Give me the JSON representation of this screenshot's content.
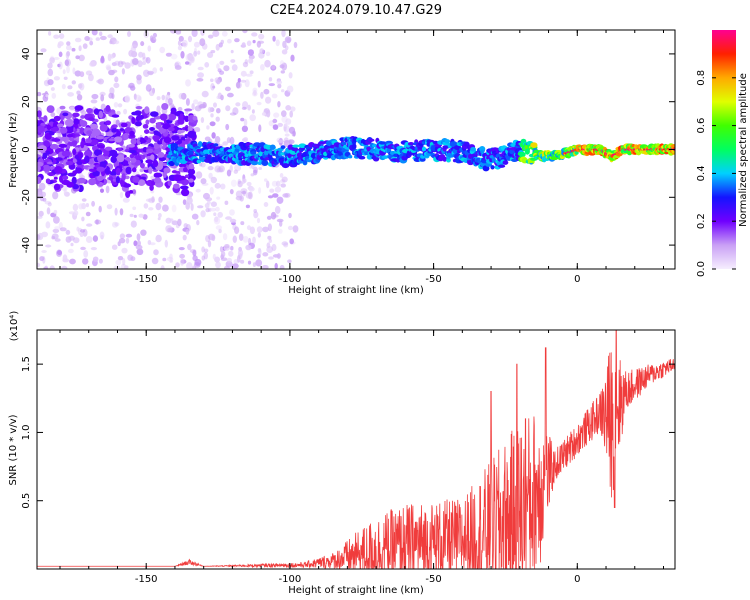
{
  "figure": {
    "title": "C2E4.2024.079.10.47.G29"
  },
  "chart_data": [
    {
      "type": "heatmap",
      "title": "C2E4.2024.079.10.47.G29",
      "xlabel": "Height of straight line (km)",
      "ylabel": "Frequency (Hz)",
      "xlim": [
        -188,
        34
      ],
      "ylim": [
        -50,
        50
      ],
      "x_ticks": [
        -150,
        -100,
        -50,
        0
      ],
      "y_ticks": [
        -40,
        -20,
        0,
        20,
        40
      ],
      "colorbar": {
        "label": "Normalized spectral amplitude",
        "range": [
          0,
          1
        ],
        "ticks": [
          "0.0",
          "0.2",
          "0.4",
          "0.6",
          "0.8"
        ],
        "colors": [
          "#f6eefe",
          "#c9a0f5",
          "#7000ff",
          "#1414ff",
          "#00d0ff",
          "#00ff60",
          "#40ff00",
          "#e0ff00",
          "#ffaa00",
          "#ff2000",
          "#ff0090"
        ]
      },
      "ridge": [
        {
          "x": -188,
          "y": 0
        },
        {
          "x": -170,
          "y": 1
        },
        {
          "x": -155,
          "y": 2
        },
        {
          "x": -142,
          "y": -2
        },
        {
          "x": -130,
          "y": -1
        },
        {
          "x": -110,
          "y": -2
        },
        {
          "x": -100,
          "y": -3
        },
        {
          "x": -90,
          "y": -1
        },
        {
          "x": -80,
          "y": 1
        },
        {
          "x": -70,
          "y": 0
        },
        {
          "x": -60,
          "y": -1
        },
        {
          "x": -50,
          "y": 0
        },
        {
          "x": -40,
          "y": -1
        },
        {
          "x": -32,
          "y": -4
        },
        {
          "x": -25,
          "y": -3
        },
        {
          "x": -20,
          "y": 0
        },
        {
          "x": -12,
          "y": -3
        },
        {
          "x": -5,
          "y": -2
        },
        {
          "x": 0,
          "y": 0
        },
        {
          "x": 8,
          "y": 0
        },
        {
          "x": 12,
          "y": -3
        },
        {
          "x": 16,
          "y": 0
        },
        {
          "x": 25,
          "y": 0
        },
        {
          "x": 34,
          "y": 0
        }
      ]
    },
    {
      "type": "line",
      "xlabel": "Height of straight line (km)",
      "ylabel": "SNR (10 * v/v)",
      "y_multiplier": "(x10⁴)",
      "xlim": [
        -188,
        34
      ],
      "ylim": [
        0,
        1.75
      ],
      "x_ticks": [
        -150,
        -100,
        -50,
        0
      ],
      "y_ticks": [
        "0.5",
        "1.0",
        "1.5"
      ],
      "color": "#f03c3c",
      "series": [
        {
          "values": [
            {
              "x": -188,
              "base": 0.02,
              "amp": 0.0
            },
            {
              "x": -140,
              "base": 0.02,
              "amp": 0.0
            },
            {
              "x": -135,
              "base": 0.05,
              "amp": 0.02
            },
            {
              "x": -130,
              "base": 0.02,
              "amp": 0.0
            },
            {
              "x": -95,
              "base": 0.03,
              "amp": 0.02
            },
            {
              "x": -85,
              "base": 0.06,
              "amp": 0.06
            },
            {
              "x": -78,
              "base": 0.1,
              "amp": 0.15
            },
            {
              "x": -70,
              "base": 0.14,
              "amp": 0.25
            },
            {
              "x": -60,
              "base": 0.18,
              "amp": 0.3
            },
            {
              "x": -50,
              "base": 0.2,
              "amp": 0.3
            },
            {
              "x": -40,
              "base": 0.22,
              "amp": 0.3
            },
            {
              "x": -30,
              "base": 0.3,
              "amp": 0.5
            },
            {
              "x": -20,
              "base": 0.4,
              "amp": 0.7
            },
            {
              "x": -13,
              "base": 0.6,
              "amp": 0.6
            },
            {
              "x": -8,
              "base": 0.75,
              "amp": 0.12
            },
            {
              "x": 0,
              "base": 0.95,
              "amp": 0.12
            },
            {
              "x": 8,
              "base": 1.15,
              "amp": 0.15
            },
            {
              "x": 12,
              "base": 1.1,
              "amp": 0.6
            },
            {
              "x": 17,
              "base": 1.3,
              "amp": 0.15
            },
            {
              "x": 25,
              "base": 1.42,
              "amp": 0.08
            },
            {
              "x": 34,
              "base": 1.5,
              "amp": 0.05
            }
          ],
          "spikes": [
            {
              "x": -30,
              "y": 1.3
            },
            {
              "x": -21,
              "y": 1.5
            },
            {
              "x": -18,
              "y": 1.1
            },
            {
              "x": -11,
              "y": 1.62
            },
            {
              "x": 13.5,
              "y": 1.75
            },
            {
              "x": 13,
              "y": 0.45
            }
          ]
        }
      ]
    }
  ]
}
